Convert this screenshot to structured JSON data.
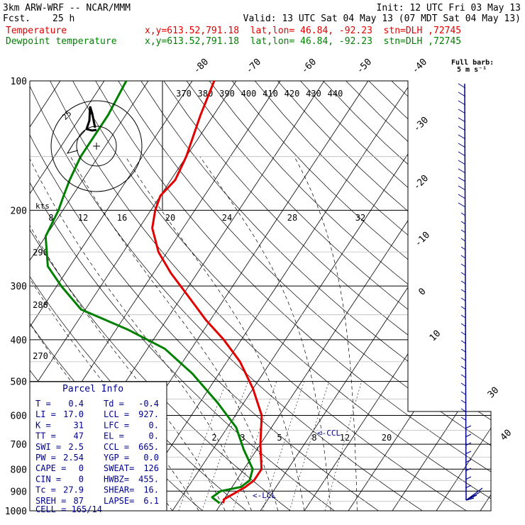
{
  "header": {
    "model": "3km ARW-WRF -- NCAR/MMM",
    "init": "Init: 12 UTC Fri 03 May 13",
    "fcst_label": "Fcst.",
    "fcst_value": "25 h",
    "valid": "Valid: 13 UTC Sat 04 May 13 (07 MDT Sat 04 May 13)",
    "temp_label": "Temperature",
    "temp_loc": "x,y=613.52,791.18  lat,lon= 46.84, -92.23  stn=DLH ,72745",
    "dew_label": "Dewpoint temperature",
    "dew_loc": "x,y=613.52,791.18  lat,lon= 46.84, -92.23  stn=DLH ,72745",
    "barb_title": "Full barb:",
    "barb_unit": "5 m s⁻¹"
  },
  "hodograph": {
    "unit": "kts",
    "ring_label": "25"
  },
  "parcel": {
    "title": "Parcel Info",
    "rows": [
      [
        "T  =",
        "0.4",
        "Td =",
        "-0.4"
      ],
      [
        "LI =",
        "17.0",
        "LCL =",
        "927."
      ],
      [
        "K  =",
        "31",
        "LFC =",
        "0."
      ],
      [
        "TT =",
        "47",
        "EL  =",
        "0."
      ],
      [
        "SWI =",
        "2.5",
        "CCL =",
        "665."
      ],
      [
        "PW =",
        "2.54",
        "YGP =",
        "0.0"
      ],
      [
        "CAPE =",
        "0",
        "SWEAT=",
        "126"
      ],
      [
        "CIN =",
        "0",
        "HWBZ=",
        "455."
      ],
      [
        "Tc =",
        "27.9",
        "SHEAR=",
        "16."
      ],
      [
        "SREH =",
        "87",
        "LAPSE=",
        "6.1"
      ]
    ],
    "cell": "CELL = 165/14"
  },
  "annotations": {
    "ccl": "<-CCL",
    "lcl": "<-LCL"
  },
  "chart_data": {
    "type": "line",
    "title": "",
    "y_log_scale": true,
    "pressure_levels": [
      100,
      200,
      300,
      400,
      500,
      600,
      700,
      800,
      900,
      1000
    ],
    "temp_ticks_top": [
      -80,
      -70,
      -60,
      -50,
      -40
    ],
    "temp_ticks_right": [
      -30,
      -20,
      -10,
      0,
      10,
      30,
      40
    ],
    "theta_labels": [
      370,
      380,
      390,
      400,
      410,
      420,
      430,
      440
    ],
    "theta_labels_left": [
      290,
      280,
      270
    ],
    "mixing_ratio_labels_upper": [
      8,
      12,
      16,
      20,
      24,
      28,
      32
    ],
    "mixing_ratio_labels_lower": [
      2,
      3,
      5,
      8,
      12,
      20
    ],
    "series": [
      {
        "name": "Temperature",
        "color": "#e00000",
        "pressure": [
          100,
          120,
          150,
          170,
          185,
          200,
          220,
          250,
          280,
          320,
          360,
          400,
          450,
          520,
          600,
          700,
          800,
          850,
          880,
          900,
          920,
          940,
          960
        ],
        "temp": [
          -65,
          -63,
          -60,
          -59,
          -60,
          -59,
          -57,
          -52,
          -46,
          -38,
          -31,
          -24,
          -17,
          -10,
          -4,
          0,
          4,
          4,
          3,
          2,
          1,
          0,
          0.4
        ]
      },
      {
        "name": "Dewpoint temperature",
        "color": "#008000",
        "pressure": [
          100,
          120,
          150,
          170,
          185,
          200,
          230,
          270,
          300,
          340,
          380,
          420,
          480,
          560,
          640,
          720,
          800,
          850,
          880,
          900,
          930,
          960
        ],
        "temp": [
          -85,
          -84,
          -84,
          -83,
          -82,
          -81,
          -80,
          -75,
          -69,
          -61,
          -47,
          -36,
          -26,
          -16,
          -8,
          -3,
          2,
          3,
          2,
          -2,
          -3,
          -0.4
        ]
      }
    ],
    "wind_barbs": "vertical profile along right edge",
    "legend_placement": "top-left header"
  }
}
